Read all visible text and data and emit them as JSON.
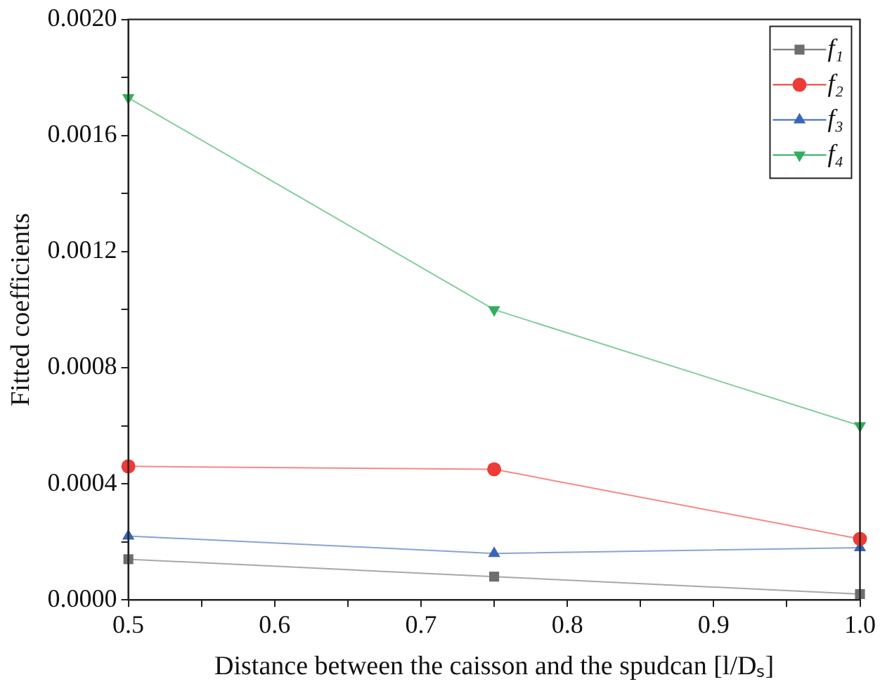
{
  "chart_data": {
    "type": "line",
    "xlabel": "Distance between the caisson and the spudcan [l/Dₛ]",
    "ylabel": "Fitted coefficients",
    "x": [
      0.5,
      0.75,
      1.0
    ],
    "series": [
      {
        "name": "f₁",
        "color": "#6d6e71",
        "marker": "square",
        "values": [
          0.00014,
          8e-05,
          2e-05
        ]
      },
      {
        "name": "f₂",
        "color": "#ee3b35",
        "marker": "circle",
        "values": [
          0.00046,
          0.00045,
          0.00021
        ]
      },
      {
        "name": "f₃",
        "color": "#3a66b8",
        "marker": "triangle",
        "values": [
          0.00022,
          0.00016,
          0.00018
        ]
      },
      {
        "name": "f₄",
        "color": "#2fae5c",
        "marker": "triangle_down",
        "values": [
          0.00173,
          0.001,
          0.0006
        ]
      }
    ],
    "xlim": [
      0.5,
      1.0
    ],
    "xticks": [
      {
        "value": 0.5,
        "label": "0.5"
      },
      {
        "value": 0.55,
        "label": null
      },
      {
        "value": 0.6,
        "label": "0.6"
      },
      {
        "value": 0.65,
        "label": null
      },
      {
        "value": 0.7,
        "label": "0.7"
      },
      {
        "value": 0.75,
        "label": null
      },
      {
        "value": 0.8,
        "label": "0.8"
      },
      {
        "value": 0.85,
        "label": null
      },
      {
        "value": 0.9,
        "label": "0.9"
      },
      {
        "value": 0.95,
        "label": null
      },
      {
        "value": 1.0,
        "label": "1.0"
      }
    ],
    "ylim": [
      0,
      0.002
    ],
    "yticks": [
      {
        "value": 0,
        "label": "0.0000"
      },
      {
        "value": 0.0002,
        "label": null
      },
      {
        "value": 0.0004,
        "label": "0.0004"
      },
      {
        "value": 0.0006,
        "label": null
      },
      {
        "value": 0.0008,
        "label": "0.0008"
      },
      {
        "value": 0.001,
        "label": null
      },
      {
        "value": 0.0012,
        "label": "0.0012"
      },
      {
        "value": 0.0014,
        "label": null
      },
      {
        "value": 0.0016,
        "label": "0.0016"
      },
      {
        "value": 0.0018,
        "label": null
      },
      {
        "value": 0.002,
        "label": "0.0020"
      }
    ],
    "grid": false,
    "legend": "top right",
    "line_style": "solid"
  }
}
